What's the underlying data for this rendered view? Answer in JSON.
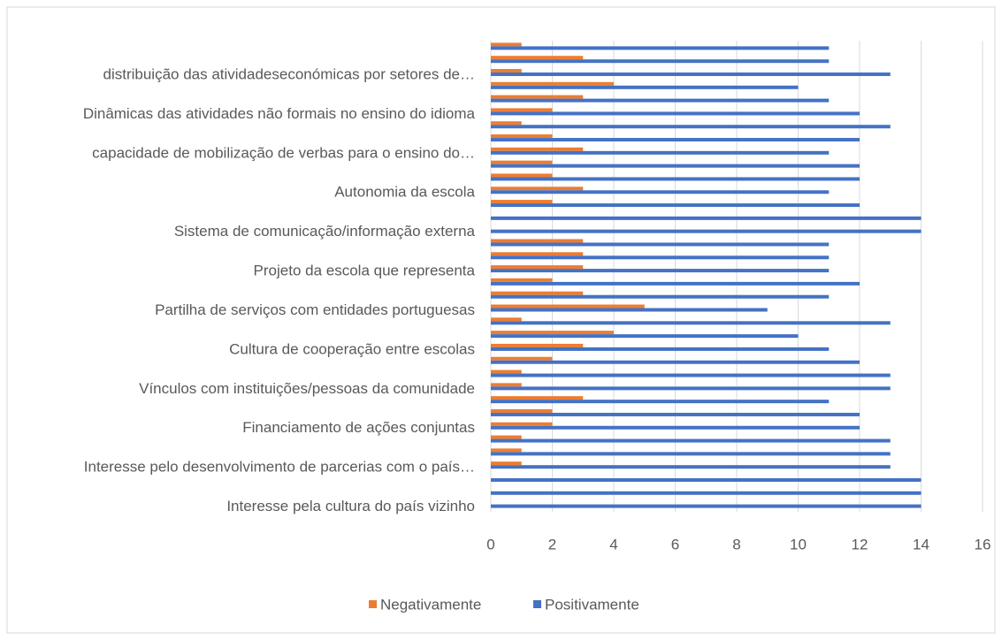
{
  "chart_data": {
    "type": "barh",
    "categories": [
      "Interesse pela cultura do país vizinho",
      null,
      null,
      "Interesse pelo desenvolvimento de parcerias com o país…",
      null,
      null,
      "Financiamento de ações conjuntas",
      null,
      null,
      "Vínculos com instituições/pessoas da comunidade",
      null,
      null,
      "Cultura de cooperação entre escolas",
      null,
      null,
      "Partilha de serviços com entidades portuguesas",
      null,
      null,
      "Projeto da escola que representa",
      null,
      null,
      "Sistema de comunicação/informação externa",
      null,
      null,
      "Autonomia da escola",
      null,
      null,
      "capacidade de mobilização de verbas para o ensino do…",
      null,
      null,
      "Dinâmicas das atividades não formais no ensino do idioma",
      null,
      null,
      "distribuição das atividadeseconómicas  por setores de…",
      null,
      null
    ],
    "series": [
      {
        "name": "Negativamente",
        "color": "#ed7d31",
        "values": [
          0,
          0,
          0,
          1,
          1,
          1,
          2,
          2,
          3,
          1,
          1,
          2,
          3,
          4,
          1,
          5,
          3,
          2,
          3,
          3,
          3,
          0,
          0,
          2,
          3,
          2,
          2,
          3,
          2,
          1,
          2,
          3,
          4,
          1,
          3,
          1
        ]
      },
      {
        "name": "Positivamente",
        "color": "#4472c4",
        "values": [
          14,
          14,
          14,
          13,
          13,
          13,
          12,
          12,
          11,
          13,
          13,
          12,
          11,
          10,
          13,
          9,
          11,
          12,
          11,
          11,
          11,
          14,
          14,
          12,
          11,
          12,
          12,
          11,
          12,
          13,
          12,
          11,
          10,
          13,
          11,
          11
        ]
      }
    ],
    "xlim": [
      0,
      16
    ],
    "xticks": [
      0,
      2,
      4,
      6,
      8,
      10,
      12,
      14,
      16
    ],
    "grid": true,
    "legend": "bottom"
  }
}
